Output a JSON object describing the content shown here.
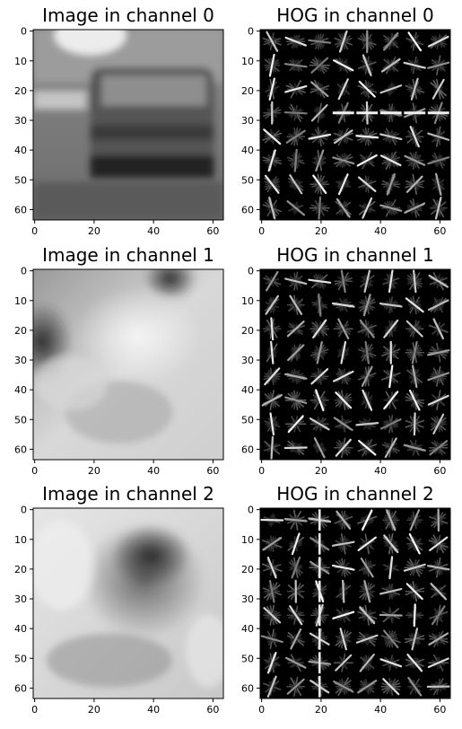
{
  "figure": {
    "grid": "3x2",
    "colormap": "gray"
  },
  "chart_data": [
    {
      "type": "heatmap",
      "kind": "image",
      "channel": 0,
      "title": "Image in channel 0",
      "xlim": [
        0,
        64
      ],
      "ylim": [
        64,
        0
      ],
      "xticks": [
        "0",
        "20",
        "40",
        "60"
      ],
      "yticks": [
        "0",
        "10",
        "20",
        "30",
        "40",
        "50",
        "60"
      ]
    },
    {
      "type": "heatmap",
      "kind": "hog",
      "channel": 0,
      "title": "HOG in channel 0",
      "xlim": [
        0,
        64
      ],
      "ylim": [
        64,
        0
      ],
      "xticks": [
        "0",
        "20",
        "40",
        "60"
      ],
      "yticks": [
        "0",
        "10",
        "20",
        "30",
        "40",
        "50",
        "60"
      ]
    },
    {
      "type": "heatmap",
      "kind": "image",
      "channel": 1,
      "title": "Image in channel 1",
      "xlim": [
        0,
        64
      ],
      "ylim": [
        64,
        0
      ],
      "xticks": [
        "0",
        "20",
        "40",
        "60"
      ],
      "yticks": [
        "0",
        "10",
        "20",
        "30",
        "40",
        "50",
        "60"
      ]
    },
    {
      "type": "heatmap",
      "kind": "hog",
      "channel": 1,
      "title": "HOG in channel 1",
      "xlim": [
        0,
        64
      ],
      "ylim": [
        64,
        0
      ],
      "xticks": [
        "0",
        "20",
        "40",
        "60"
      ],
      "yticks": [
        "0",
        "10",
        "20",
        "30",
        "40",
        "50",
        "60"
      ]
    },
    {
      "type": "heatmap",
      "kind": "image",
      "channel": 2,
      "title": "Image in channel 2",
      "xlim": [
        0,
        64
      ],
      "ylim": [
        64,
        0
      ],
      "xticks": [
        "0",
        "20",
        "40",
        "60"
      ],
      "yticks": [
        "0",
        "10",
        "20",
        "30",
        "40",
        "50",
        "60"
      ]
    },
    {
      "type": "heatmap",
      "kind": "hog",
      "channel": 2,
      "title": "HOG in channel 2",
      "xlim": [
        0,
        64
      ],
      "ylim": [
        64,
        0
      ],
      "xticks": [
        "0",
        "20",
        "40",
        "60"
      ],
      "yticks": [
        "0",
        "10",
        "20",
        "30",
        "40",
        "50",
        "60"
      ]
    }
  ]
}
